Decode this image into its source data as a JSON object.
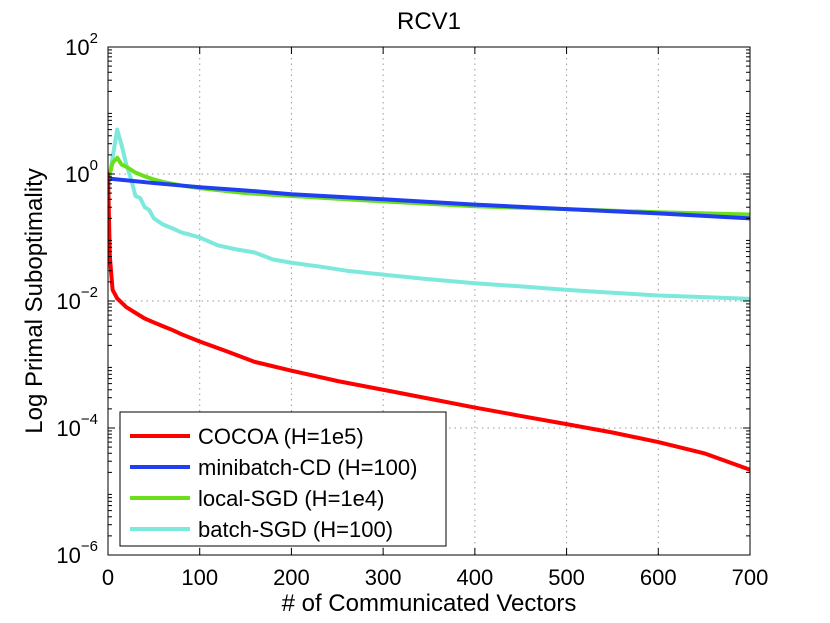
{
  "chart_data": {
    "type": "line",
    "title": "RCV1",
    "xlabel": "# of Communicated Vectors",
    "ylabel": "Log Primal Suboptimality",
    "xlim": [
      0,
      700
    ],
    "ylim": [
      1e-06,
      100
    ],
    "yscale": "log",
    "grid": true,
    "legend_position": "bottom-left",
    "x_ticks": [
      {
        "value": 0,
        "label": "0"
      },
      {
        "value": 100,
        "label": "100"
      },
      {
        "value": 200,
        "label": "200"
      },
      {
        "value": 300,
        "label": "300"
      },
      {
        "value": 400,
        "label": "400"
      },
      {
        "value": 500,
        "label": "500"
      },
      {
        "value": 600,
        "label": "600"
      },
      {
        "value": 700,
        "label": "700"
      }
    ],
    "y_ticks": [
      {
        "value": 1e-06,
        "base": "10",
        "exp": "−6"
      },
      {
        "value": 0.0001,
        "base": "10",
        "exp": "−4"
      },
      {
        "value": 0.01,
        "base": "10",
        "exp": "−2"
      },
      {
        "value": 1,
        "base": "10",
        "exp": "0"
      },
      {
        "value": 100,
        "base": "10",
        "exp": "2"
      }
    ],
    "series": [
      {
        "name": "COCOA (H=1e5)",
        "color": "#ff0000",
        "x": [
          0,
          2,
          5,
          10,
          20,
          30,
          40,
          50,
          60,
          70,
          80,
          100,
          130,
          160,
          200,
          250,
          300,
          350,
          400,
          450,
          500,
          550,
          600,
          650,
          700
        ],
        "y": [
          1.0,
          0.05,
          0.015,
          0.011,
          0.008,
          0.0065,
          0.0053,
          0.0046,
          0.004,
          0.0035,
          0.003,
          0.0023,
          0.0016,
          0.0011,
          0.0008,
          0.00055,
          0.0004,
          0.00029,
          0.00021,
          0.000155,
          0.000115,
          8.5e-05,
          6e-05,
          4e-05,
          2.2e-05
        ]
      },
      {
        "name": "minibatch-CD (H=100)",
        "color": "#1f3ff0",
        "x": [
          0,
          50,
          100,
          150,
          200,
          300,
          400,
          500,
          600,
          700
        ],
        "y": [
          0.85,
          0.72,
          0.62,
          0.55,
          0.48,
          0.4,
          0.33,
          0.28,
          0.24,
          0.2
        ]
      },
      {
        "name": "local-SGD (H=1e4)",
        "color": "#6be01a",
        "x": [
          0,
          5,
          10,
          15,
          20,
          30,
          40,
          50,
          60,
          80,
          100,
          150,
          200,
          300,
          400,
          500,
          600,
          700
        ],
        "y": [
          0.8,
          1.5,
          1.8,
          1.4,
          1.3,
          1.05,
          0.92,
          0.82,
          0.75,
          0.66,
          0.6,
          0.5,
          0.45,
          0.37,
          0.31,
          0.28,
          0.25,
          0.23
        ]
      },
      {
        "name": "batch-SGD (H=100)",
        "color": "#7de8dc",
        "x": [
          0,
          5,
          10,
          15,
          20,
          25,
          30,
          35,
          40,
          45,
          50,
          60,
          70,
          80,
          90,
          100,
          120,
          140,
          160,
          180,
          200,
          230,
          260,
          300,
          350,
          400,
          450,
          500,
          550,
          600,
          650,
          700
        ],
        "y": [
          0.6,
          1.8,
          5.0,
          2.8,
          1.4,
          0.85,
          0.45,
          0.42,
          0.3,
          0.27,
          0.2,
          0.16,
          0.14,
          0.12,
          0.11,
          0.1,
          0.075,
          0.065,
          0.058,
          0.045,
          0.04,
          0.035,
          0.03,
          0.026,
          0.022,
          0.019,
          0.017,
          0.015,
          0.0135,
          0.0122,
          0.0115,
          0.0108
        ]
      }
    ]
  }
}
